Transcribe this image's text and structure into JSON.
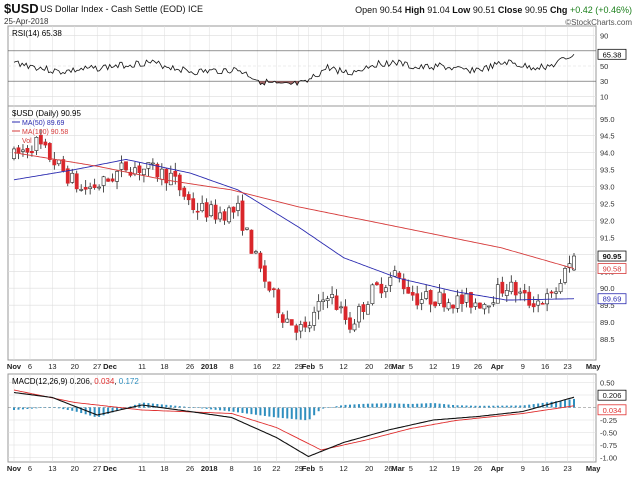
{
  "header": {
    "symbol": "$USD",
    "name": "US Dollar Index - Cash Settle (EOD) ICE",
    "date": "25-Apr-2018",
    "open_label": "Open",
    "open": "90.54",
    "high_label": "High",
    "high": "91.04",
    "low_label": "Low",
    "low": "90.51",
    "close_label": "Close",
    "close": "90.95",
    "chg_label": "Chg",
    "chg": "+0.42 (+0.46%)",
    "site": "©StockCharts.com"
  },
  "colors": {
    "up": "#ffffff",
    "down": "#d9262b",
    "candle_edge": "#222222",
    "ma50": "#2b2bb0",
    "ma100": "#d63b3b",
    "rsi": "#111111",
    "rsi_fill": "#8b3a3a",
    "macd": "#111111",
    "signal": "#e03030",
    "hist": "#2f8fbf",
    "grid": "#dcdcdc"
  },
  "rsi_panel": {
    "label": "RSI(14) 65.38",
    "levels": [
      "90",
      "70",
      "50",
      "30",
      "10"
    ],
    "last_value": "65.38"
  },
  "price_panel": {
    "label": "$USD (Daily) 90.95",
    "ma50_label": "MA(50) 89.69",
    "ma100_label": "MA(100) 90.58",
    "vol_label": "Vol",
    "y_ticks": [
      "95.0",
      "94.5",
      "94.0",
      "93.5",
      "93.0",
      "92.5",
      "92.0",
      "91.5",
      "91.0",
      "90.5",
      "90.0",
      "89.5",
      "89.0",
      "88.5"
    ],
    "badges": [
      {
        "text": "90.95",
        "style": "close"
      },
      {
        "text": "90.58",
        "style": "ma100"
      },
      {
        "text": "89.69",
        "style": "ma50"
      }
    ]
  },
  "macd_panel": {
    "label_prefix": "MACD(12,26,9) ",
    "macd_val": "0.206",
    "signal_val": "0.034",
    "hist_val": "0.172",
    "y_ticks": [
      "0.50",
      "0.25",
      "0.00",
      "-0.25",
      "-0.50",
      "-0.75",
      "-1.00"
    ],
    "badges": [
      {
        "text": "0.206",
        "style": "macd"
      },
      {
        "text": "0.034",
        "style": "signal"
      }
    ]
  },
  "x_axis": {
    "labels": [
      "Nov",
      "6",
      "13",
      "20",
      "27",
      "Dec",
      "11",
      "18",
      "26",
      "2018",
      "8",
      "16",
      "22",
      "29",
      "Feb",
      "5",
      "12",
      "20",
      "26",
      "Mar",
      "5",
      "12",
      "19",
      "26",
      "Apr",
      "9",
      "16",
      "23",
      "May"
    ],
    "bold": [
      "Nov",
      "Dec",
      "2018",
      "Feb",
      "Mar",
      "Apr",
      "May"
    ]
  },
  "chart_data": {
    "type": "line",
    "title": "$USD (Daily)",
    "x_range": [
      "2017-11-01",
      "2018-04-30"
    ],
    "ylim_price": [
      88.0,
      95.2
    ],
    "price_close_weekly": [
      {
        "x": "2017-11-01",
        "y": 93.9
      },
      {
        "x": "2017-11-08",
        "y": 94.3
      },
      {
        "x": "2017-11-15",
        "y": 93.6
      },
      {
        "x": "2017-11-22",
        "y": 92.9
      },
      {
        "x": "2017-11-29",
        "y": 93.1
      },
      {
        "x": "2017-12-06",
        "y": 93.6
      },
      {
        "x": "2017-12-13",
        "y": 93.5
      },
      {
        "x": "2017-12-20",
        "y": 93.3
      },
      {
        "x": "2017-12-27",
        "y": 92.4
      },
      {
        "x": "2018-01-03",
        "y": 92.2
      },
      {
        "x": "2018-01-10",
        "y": 92.3
      },
      {
        "x": "2018-01-17",
        "y": 90.5
      },
      {
        "x": "2018-01-24",
        "y": 89.2
      },
      {
        "x": "2018-01-31",
        "y": 88.7
      },
      {
        "x": "2018-02-07",
        "y": 89.9
      },
      {
        "x": "2018-02-14",
        "y": 88.9
      },
      {
        "x": "2018-02-21",
        "y": 89.9
      },
      {
        "x": "2018-02-28",
        "y": 90.4
      },
      {
        "x": "2018-03-07",
        "y": 89.7
      },
      {
        "x": "2018-03-14",
        "y": 89.7
      },
      {
        "x": "2018-03-21",
        "y": 89.6
      },
      {
        "x": "2018-03-28",
        "y": 89.6
      },
      {
        "x": "2018-04-04",
        "y": 90.1
      },
      {
        "x": "2018-04-11",
        "y": 89.6
      },
      {
        "x": "2018-04-18",
        "y": 89.7
      },
      {
        "x": "2018-04-25",
        "y": 90.95
      }
    ],
    "series": [
      {
        "name": "MA(50)",
        "values": [
          {
            "x": "2017-11-01",
            "y": 93.2
          },
          {
            "x": "2017-11-20",
            "y": 93.5
          },
          {
            "x": "2017-12-06",
            "y": 93.8
          },
          {
            "x": "2017-12-26",
            "y": 93.4
          },
          {
            "x": "2018-01-10",
            "y": 92.9
          },
          {
            "x": "2018-01-29",
            "y": 91.8
          },
          {
            "x": "2018-02-12",
            "y": 90.9
          },
          {
            "x": "2018-03-01",
            "y": 90.3
          },
          {
            "x": "2018-03-19",
            "y": 89.9
          },
          {
            "x": "2018-04-04",
            "y": 89.65
          },
          {
            "x": "2018-04-25",
            "y": 89.69
          }
        ]
      },
      {
        "name": "MA(100)",
        "values": [
          {
            "x": "2017-11-01",
            "y": 94.0
          },
          {
            "x": "2017-11-27",
            "y": 93.6
          },
          {
            "x": "2017-12-18",
            "y": 93.2
          },
          {
            "x": "2018-01-08",
            "y": 92.9
          },
          {
            "x": "2018-01-29",
            "y": 92.4
          },
          {
            "x": "2018-02-19",
            "y": 92.0
          },
          {
            "x": "2018-03-12",
            "y": 91.6
          },
          {
            "x": "2018-04-02",
            "y": 91.2
          },
          {
            "x": "2018-04-25",
            "y": 90.58
          }
        ]
      }
    ],
    "rsi": {
      "name": "RSI(14)",
      "ylim": [
        0,
        100
      ],
      "values": [
        {
          "x": "2017-11-01",
          "y": 55
        },
        {
          "x": "2017-11-15",
          "y": 42
        },
        {
          "x": "2017-11-29",
          "y": 48
        },
        {
          "x": "2017-12-13",
          "y": 55
        },
        {
          "x": "2017-12-27",
          "y": 42
        },
        {
          "x": "2018-01-10",
          "y": 45
        },
        {
          "x": "2018-01-17",
          "y": 30
        },
        {
          "x": "2018-01-24",
          "y": 24
        },
        {
          "x": "2018-01-31",
          "y": 27
        },
        {
          "x": "2018-02-07",
          "y": 48
        },
        {
          "x": "2018-02-14",
          "y": 40
        },
        {
          "x": "2018-02-21",
          "y": 52
        },
        {
          "x": "2018-02-28",
          "y": 55
        },
        {
          "x": "2018-03-07",
          "y": 47
        },
        {
          "x": "2018-03-14",
          "y": 50
        },
        {
          "x": "2018-03-21",
          "y": 44
        },
        {
          "x": "2018-03-28",
          "y": 46
        },
        {
          "x": "2018-04-04",
          "y": 55
        },
        {
          "x": "2018-04-11",
          "y": 48
        },
        {
          "x": "2018-04-18",
          "y": 50
        },
        {
          "x": "2018-04-25",
          "y": 65.38
        }
      ]
    },
    "macd": {
      "name": "MACD(12,26,9)",
      "ylim": [
        -1.05,
        0.55
      ],
      "macd_line": [
        {
          "x": "2017-11-01",
          "y": 0.3
        },
        {
          "x": "2017-11-13",
          "y": 0.2
        },
        {
          "x": "2017-11-27",
          "y": -0.15
        },
        {
          "x": "2017-12-11",
          "y": 0.05
        },
        {
          "x": "2017-12-26",
          "y": -0.08
        },
        {
          "x": "2018-01-08",
          "y": -0.2
        },
        {
          "x": "2018-01-22",
          "y": -0.6
        },
        {
          "x": "2018-02-01",
          "y": -0.98
        },
        {
          "x": "2018-02-12",
          "y": -0.7
        },
        {
          "x": "2018-02-26",
          "y": -0.45
        },
        {
          "x": "2018-03-12",
          "y": -0.25
        },
        {
          "x": "2018-03-26",
          "y": -0.18
        },
        {
          "x": "2018-04-09",
          "y": -0.08
        },
        {
          "x": "2018-04-25",
          "y": 0.206
        }
      ],
      "signal_line": [
        {
          "x": "2017-11-01",
          "y": 0.35
        },
        {
          "x": "2017-11-20",
          "y": 0.1
        },
        {
          "x": "2017-12-11",
          "y": -0.05
        },
        {
          "x": "2018-01-08",
          "y": -0.12
        },
        {
          "x": "2018-01-22",
          "y": -0.4
        },
        {
          "x": "2018-02-05",
          "y": -0.85
        },
        {
          "x": "2018-02-19",
          "y": -0.65
        },
        {
          "x": "2018-03-05",
          "y": -0.42
        },
        {
          "x": "2018-03-19",
          "y": -0.26
        },
        {
          "x": "2018-04-09",
          "y": -0.12
        },
        {
          "x": "2018-04-25",
          "y": 0.034
        }
      ]
    }
  }
}
